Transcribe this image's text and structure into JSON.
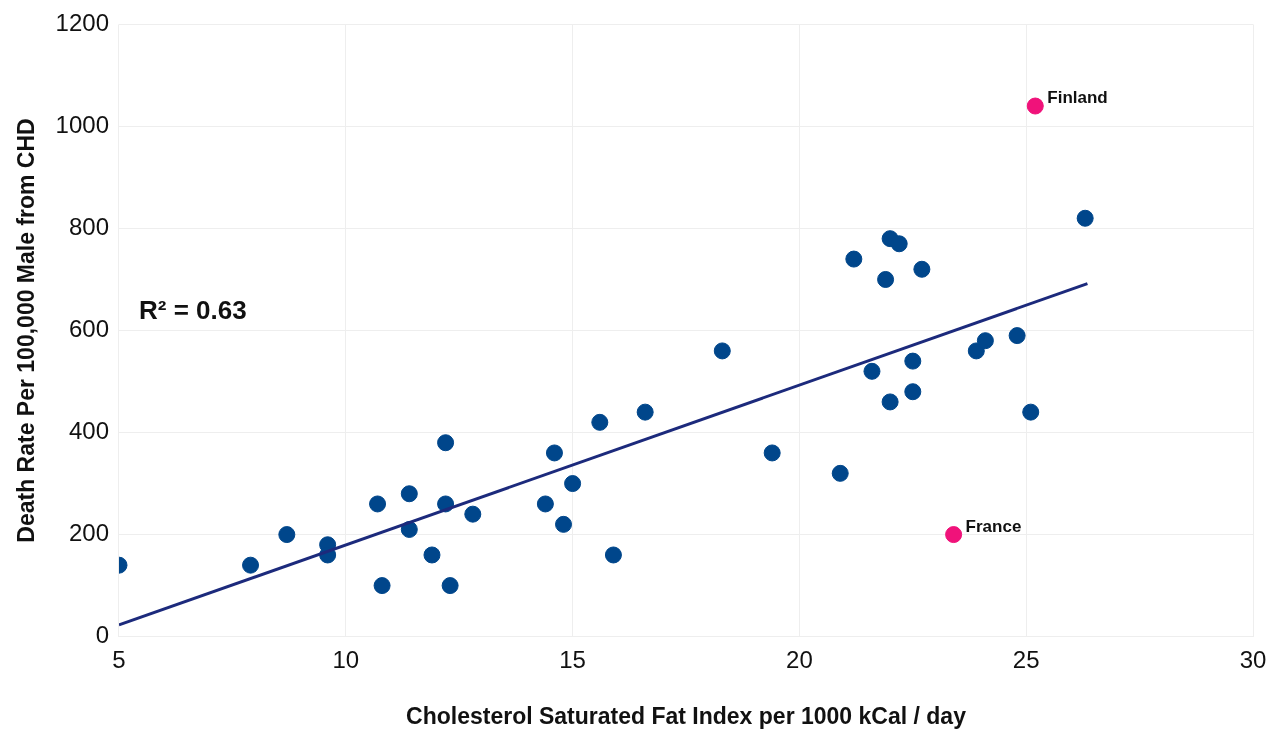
{
  "chart_data": {
    "type": "scatter",
    "xlabel": "Cholesterol Saturated Fat Index per 1000 kCal / day",
    "ylabel": "Death Rate Per 100,000 Male from CHD",
    "xlim": [
      5,
      30
    ],
    "xticks": [
      5,
      10,
      15,
      20,
      25,
      30
    ],
    "ylim": [
      0,
      1200
    ],
    "yticks": [
      0,
      200,
      400,
      600,
      800,
      1000,
      1200
    ],
    "grid": true,
    "legend": false,
    "marker": "circle",
    "series": [
      {
        "color": "#00468b",
        "x": [
          5,
          7.9,
          8.7,
          9.6,
          9.6,
          10.7,
          10.8,
          11.4,
          11.4,
          11.9,
          12.2,
          12.2,
          12.3,
          12.8,
          14.4,
          14.6,
          14.8,
          15.0,
          15.6,
          15.9,
          16.6,
          18.3,
          19.4,
          20.9,
          21.2,
          21.6,
          21.9,
          22.0,
          22.0,
          22.2,
          22.5,
          22.5,
          22.7,
          23.9,
          24.1,
          24.8,
          25.1,
          26.3
        ],
        "values": [
          140,
          140,
          200,
          180,
          160,
          260,
          100,
          280,
          210,
          160,
          380,
          260,
          100,
          240,
          260,
          360,
          220,
          300,
          420,
          160,
          440,
          560,
          360,
          320,
          740,
          520,
          700,
          780,
          460,
          770,
          540,
          480,
          720,
          560,
          580,
          590,
          440,
          820
        ]
      },
      {
        "color": "#f0127a",
        "x": [
          25.2,
          23.4
        ],
        "values": [
          1040,
          200
        ]
      },
      {
        "type": "line",
        "color": "#1c2a7c",
        "x": [
          5,
          26.35
        ],
        "values": [
          23,
          692
        ],
        "marker": "none"
      }
    ],
    "annotations": [
      "R² = 0.63",
      {
        "text": "Finland",
        "x": 25.2,
        "y": 1040
      },
      {
        "text": "France",
        "x": 23.4,
        "y": 200
      }
    ]
  }
}
